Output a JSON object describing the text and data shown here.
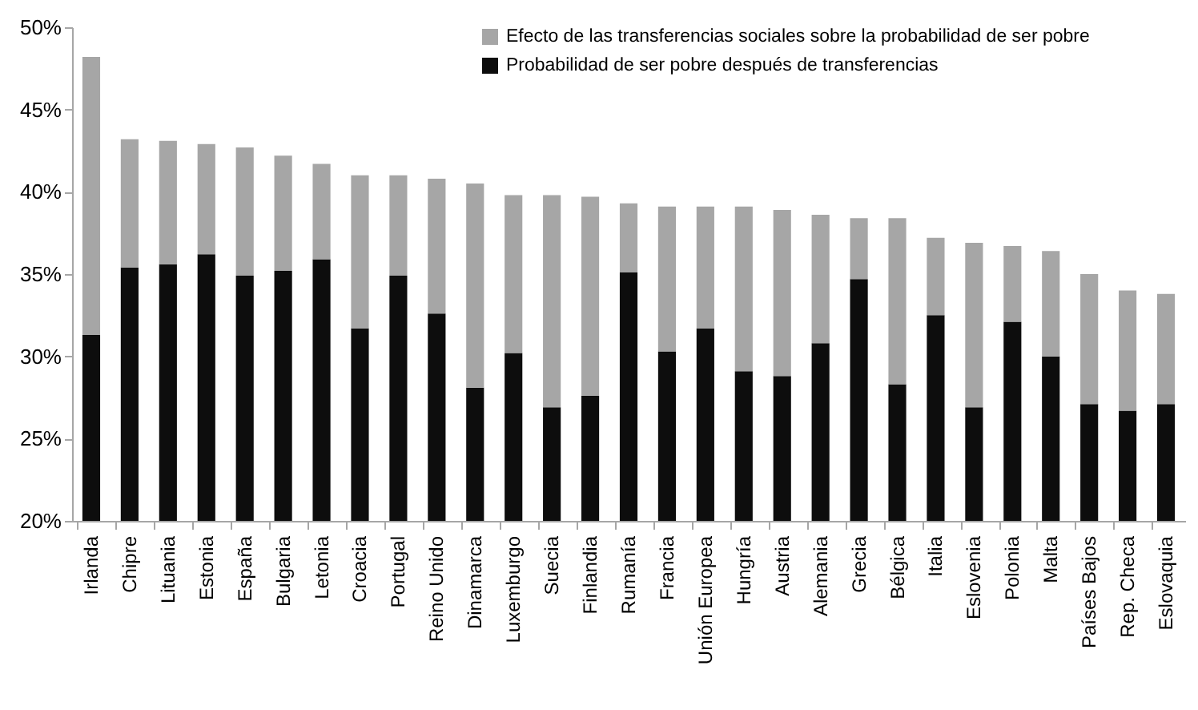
{
  "chart_data": {
    "type": "bar",
    "stacked": true,
    "categories": [
      "Irlanda",
      "Chipre",
      "Lituania",
      "Estonia",
      "España",
      "Bulgaria",
      "Letonia",
      "Croacia",
      "Portugal",
      "Reino Unido",
      "Dinamarca",
      "Luxemburgo",
      "Suecia",
      "Finlandia",
      "Rumanía",
      "Francia",
      "Unión Europea",
      "Hungría",
      "Austria",
      "Alemania",
      "Grecia",
      "Bélgica",
      "Italia",
      "Eslovenia",
      "Polonia",
      "Malta",
      "Países Bajos",
      "Rep. Checa",
      "Eslovaquia"
    ],
    "series": [
      {
        "name": "Probabilidad de ser pobre después de transferencias",
        "color": "#0d0d0d",
        "values": [
          31.3,
          35.4,
          35.6,
          36.2,
          34.9,
          35.2,
          35.9,
          31.7,
          34.9,
          32.6,
          28.1,
          30.2,
          26.9,
          27.6,
          35.1,
          30.3,
          31.7,
          29.1,
          28.8,
          30.8,
          34.7,
          28.3,
          32.5,
          26.9,
          32.1,
          30.0,
          27.1,
          26.7,
          27.1
        ]
      },
      {
        "name": "Efecto de las transferencias sociales sobre la probabilidad de ser pobre",
        "color": "#a6a6a6",
        "base": [
          31.3,
          35.4,
          35.6,
          36.2,
          34.9,
          35.2,
          35.9,
          31.7,
          34.9,
          32.6,
          28.1,
          30.2,
          26.9,
          27.6,
          35.1,
          30.3,
          31.7,
          29.1,
          28.8,
          30.8,
          34.7,
          28.3,
          32.5,
          26.9,
          32.1,
          30.0,
          27.1,
          26.7,
          27.1
        ],
        "values": [
          16.9,
          7.8,
          7.5,
          6.7,
          7.8,
          7.0,
          5.8,
          9.3,
          6.1,
          8.2,
          12.4,
          9.6,
          12.9,
          12.1,
          4.2,
          8.8,
          7.4,
          10.0,
          10.1,
          7.8,
          3.7,
          10.1,
          4.7,
          10.0,
          4.6,
          6.4,
          7.9,
          7.3,
          6.7
        ]
      }
    ],
    "ylim": [
      20,
      50
    ],
    "yticks": [
      {
        "value": 20,
        "label": "20%"
      },
      {
        "value": 25,
        "label": "25%"
      },
      {
        "value": 30,
        "label": "30%"
      },
      {
        "value": 35,
        "label": "35%"
      },
      {
        "value": 40,
        "label": "40%"
      },
      {
        "value": 45,
        "label": "45%"
      },
      {
        "value": 50,
        "label": "50%"
      }
    ],
    "grid": false,
    "legend": "top right"
  }
}
